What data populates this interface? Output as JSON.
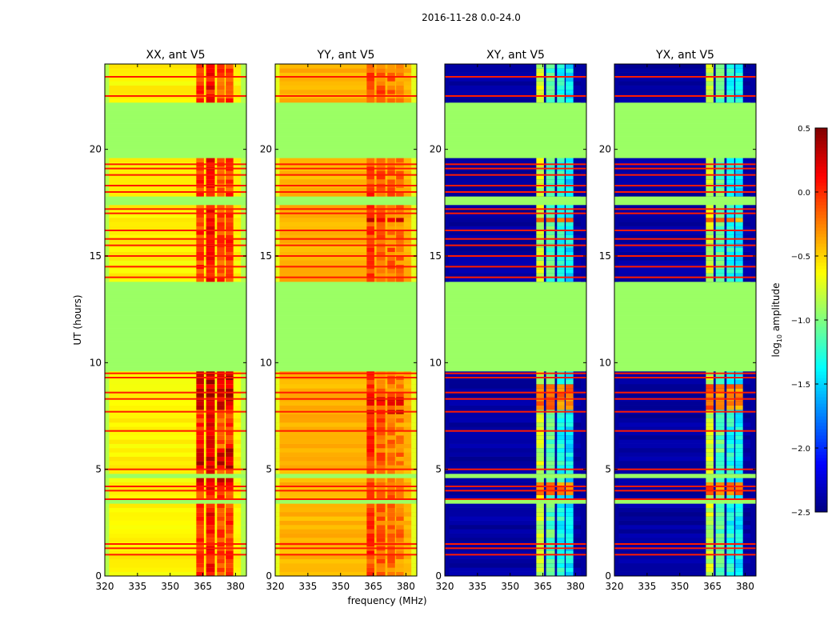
{
  "chart_data": {
    "type": "heatmap",
    "title": "2016-11-28 0.0-24.0",
    "xlabel": "frequency (MHz)",
    "ylabel": "UT (hours)",
    "xlim": [
      320,
      385
    ],
    "ylim": [
      0,
      24
    ],
    "xticks": [
      "320",
      "335",
      "350",
      "365",
      "380"
    ],
    "xtick_values": [
      320,
      335,
      350,
      365,
      380
    ],
    "yticks": [
      "0",
      "5",
      "10",
      "15",
      "20"
    ],
    "ytick_values": [
      0,
      5,
      10,
      15,
      20
    ],
    "colorbar": {
      "label": "log10 amplitude",
      "label_main": "log",
      "label_sub": "10",
      "label_rest": " amplitude",
      "range": [
        -2.5,
        0.5
      ],
      "ticks": [
        "0.5",
        "0.0",
        "−0.5",
        "−1.0",
        "−1.5",
        "−2.0",
        "−2.5"
      ],
      "tick_values": [
        0.5,
        0.0,
        -0.5,
        -1.0,
        -1.5,
        -2.0,
        -2.5
      ],
      "colormap": "jet"
    },
    "flag_value": -0.92,
    "flagged_hours": [
      [
        9.6,
        13.7
      ],
      [
        19.5,
        22.25
      ],
      [
        22.35,
        22.45
      ],
      [
        4.6,
        4.72
      ],
      [
        3.45,
        3.55
      ],
      [
        17.45,
        17.75
      ],
      [
        7.35,
        7.5
      ],
      [
        6.6,
        6.7
      ]
    ],
    "rfi_lines_hours": [
      1.0,
      1.3,
      1.5,
      3.6,
      4.0,
      4.2,
      5.0,
      6.8,
      7.7,
      8.3,
      8.6,
      9.3,
      9.5,
      14.0,
      14.5,
      15.0,
      15.5,
      15.8,
      16.2,
      17.0,
      17.2,
      18.0,
      18.3,
      18.8,
      19.1,
      19.3,
      22.5,
      23.4
    ],
    "rfi_line_value": 0.05,
    "rfi_band_columns_mhz": [
      [
        362,
        365.5
      ],
      [
        366.5,
        370.5
      ],
      [
        371.5,
        375
      ],
      [
        375.5,
        379
      ]
    ],
    "panels": [
      {
        "title": "XX, ant V5",
        "base": -0.6,
        "edge": -0.85,
        "rfi": [
          -0.05,
          0.1,
          -0.1,
          -0.05
        ],
        "hot_hours": [
          [
            4.2,
            4.6
          ],
          [
            7.8,
            9.6
          ],
          [
            5.0,
            6.0
          ]
        ],
        "hot_value": 0.35
      },
      {
        "title": "YY, ant V5",
        "base": -0.4,
        "edge": -0.7,
        "rfi": [
          -0.05,
          -0.15,
          -0.2,
          -0.25
        ],
        "hot_hours": [
          [
            7.7,
            7.9
          ],
          [
            8.0,
            8.5
          ],
          [
            16.5,
            16.8
          ]
        ],
        "hot_value": 0.35
      },
      {
        "title": "XY, ant V5",
        "base": -2.4,
        "edge": -2.4,
        "rfi": [
          -0.8,
          -1.1,
          -1.3,
          -1.4
        ],
        "hot_hours": [
          [
            7.8,
            9.0
          ],
          [
            16.5,
            16.8
          ],
          [
            3.9,
            4.4
          ]
        ],
        "hot_value": 0.0
      },
      {
        "title": "YX, ant V5",
        "base": -2.4,
        "edge": -2.4,
        "rfi": [
          -0.8,
          -1.1,
          -1.3,
          -1.4
        ],
        "hot_hours": [
          [
            7.8,
            9.0
          ],
          [
            16.5,
            16.8
          ],
          [
            3.9,
            4.4
          ]
        ],
        "hot_value": 0.0
      }
    ]
  }
}
